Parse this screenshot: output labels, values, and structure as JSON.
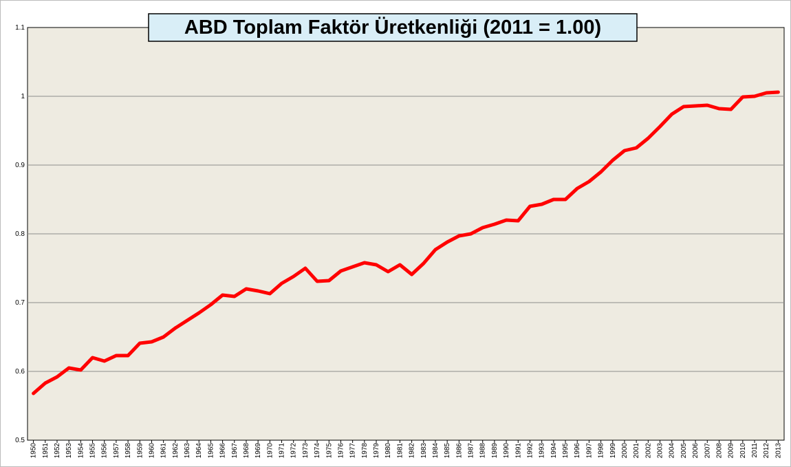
{
  "chart_data": {
    "type": "line",
    "title": "ABD Toplam Faktör Üretkenliği  (2011 = 1.00)",
    "categories": [
      "1950",
      "1951",
      "1952",
      "1953",
      "1954",
      "1955",
      "1956",
      "1957",
      "1958",
      "1959",
      "1960",
      "1961",
      "1962",
      "1963",
      "1964",
      "1965",
      "1966",
      "1967",
      "1968",
      "1969",
      "1970",
      "1971",
      "1972",
      "1973",
      "1974",
      "1975",
      "1976",
      "1977",
      "1978",
      "1979",
      "1980",
      "1981",
      "1982",
      "1983",
      "1984",
      "1985",
      "1986",
      "1987",
      "1988",
      "1989",
      "1990",
      "1991",
      "1992",
      "1993",
      "1994",
      "1995",
      "1996",
      "1997",
      "1998",
      "1999",
      "2000",
      "2001",
      "2002",
      "2003",
      "2004",
      "2005",
      "2006",
      "2007",
      "2008",
      "2009",
      "2010",
      "2011",
      "2012",
      "2013"
    ],
    "values": [
      0.568,
      0.583,
      0.592,
      0.605,
      0.602,
      0.62,
      0.615,
      0.623,
      0.623,
      0.641,
      0.643,
      0.65,
      0.663,
      0.674,
      0.685,
      0.697,
      0.711,
      0.709,
      0.72,
      0.717,
      0.713,
      0.728,
      0.738,
      0.75,
      0.731,
      0.732,
      0.746,
      0.752,
      0.758,
      0.755,
      0.745,
      0.755,
      0.741,
      0.757,
      0.777,
      0.788,
      0.797,
      0.8,
      0.809,
      0.814,
      0.82,
      0.819,
      0.84,
      0.843,
      0.85,
      0.85,
      0.866,
      0.876,
      0.89,
      0.907,
      0.921,
      0.925,
      0.939,
      0.956,
      0.974,
      0.985,
      0.986,
      0.987,
      0.982,
      0.981,
      0.999,
      1.0,
      1.005,
      1.006
    ],
    "color": "#ff0000",
    "ylim": [
      0.5,
      1.1
    ],
    "yticks": [
      0.5,
      0.6,
      0.7,
      0.8,
      0.9,
      1,
      1.1
    ],
    "grid": true
  }
}
